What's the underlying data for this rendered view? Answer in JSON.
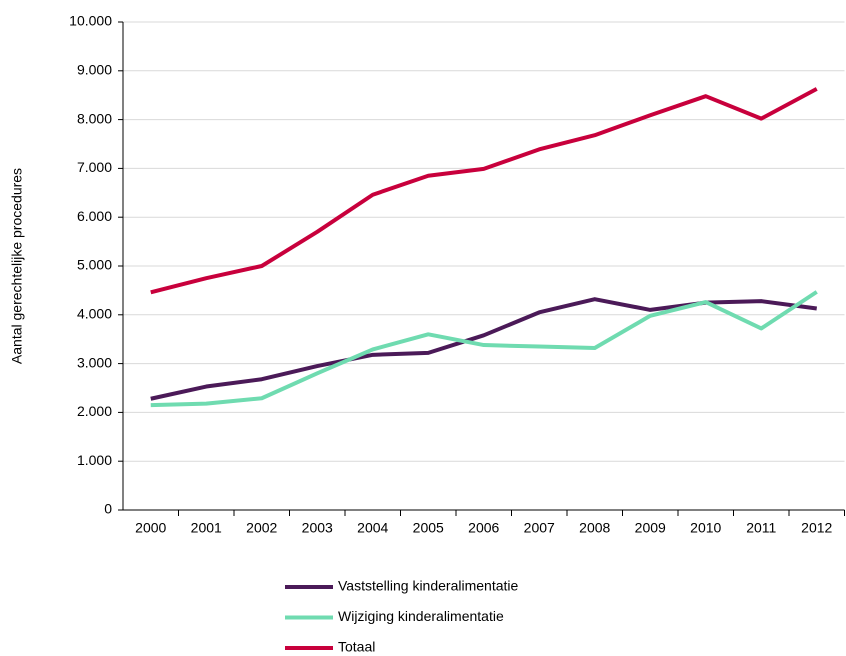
{
  "chart_data": {
    "type": "line",
    "y_label": "Aantal gerechtelijke procedures",
    "categories": [
      "2000",
      "2001",
      "2002",
      "2003",
      "2004",
      "2005",
      "2006",
      "2007",
      "2008",
      "2009",
      "2010",
      "2011",
      "2012"
    ],
    "series": [
      {
        "name": "Vaststelling kinderalimentatie",
        "color": "#4b1a58",
        "values": [
          2280,
          2530,
          2680,
          2950,
          3180,
          3220,
          3580,
          4050,
          4320,
          4100,
          4250,
          4280,
          4130
        ]
      },
      {
        "name": "Wijziging kinderalimentatie",
        "color": "#6fdbb0",
        "values": [
          2150,
          2180,
          2290,
          2800,
          3290,
          3600,
          3380,
          3350,
          3320,
          3980,
          4260,
          3720,
          4470
        ]
      },
      {
        "name": "Totaal",
        "color": "#c8003c",
        "values": [
          4460,
          4750,
          5000,
          5700,
          6460,
          6850,
          6990,
          7390,
          7680,
          8090,
          8480,
          8020,
          8630
        ]
      }
    ],
    "ylim": [
      0,
      10000
    ],
    "yticks": [
      0,
      {
        "value": 1000,
        "label": "1.000"
      },
      {
        "value": 2000,
        "label": "2.000"
      },
      {
        "value": 3000,
        "label": "3.000"
      },
      {
        "value": 4000,
        "label": "4.000"
      },
      {
        "value": 5000,
        "label": "5.000"
      },
      {
        "value": 6000,
        "label": "6.000"
      },
      {
        "value": 7000,
        "label": "7.000"
      },
      {
        "value": 8000,
        "label": "8.000"
      },
      {
        "value": 9000,
        "label": "9.000"
      },
      {
        "value": 10000,
        "label": "10.000"
      }
    ],
    "grid": true,
    "legend": "bottom"
  }
}
